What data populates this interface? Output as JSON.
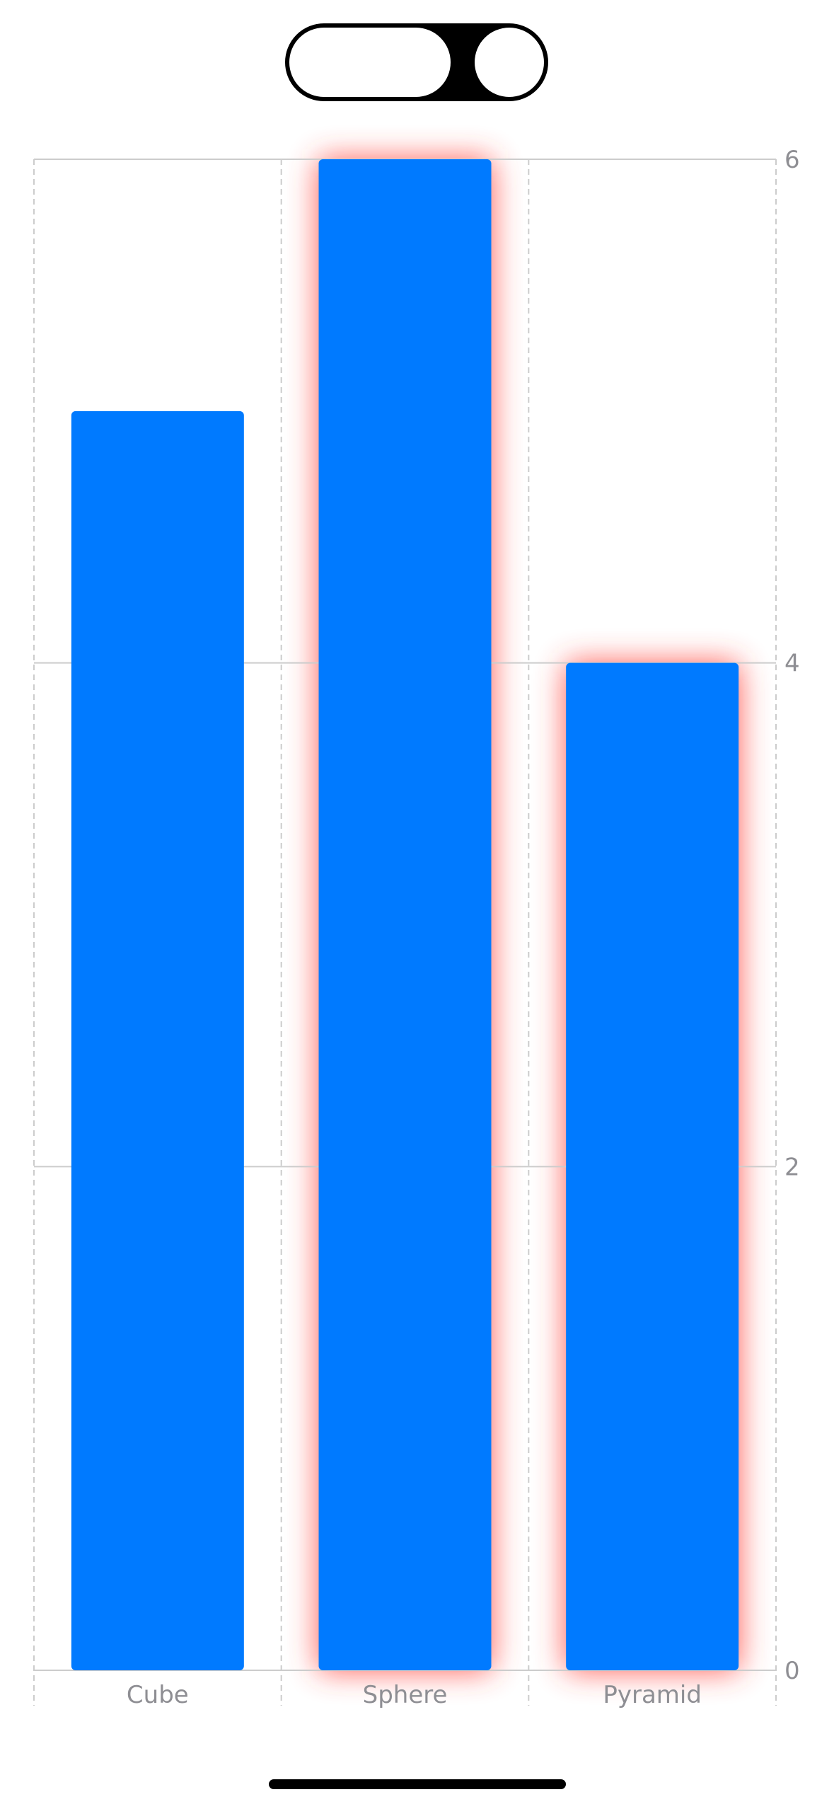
{
  "toggle": {
    "state": "on",
    "colors": {
      "track": "#000000",
      "knob": "#ffffff"
    }
  },
  "chart_data": {
    "type": "bar",
    "categories": [
      "Cube",
      "Sphere",
      "Pyramid"
    ],
    "values": [
      5,
      6,
      4
    ],
    "highlighted": [
      "Sphere",
      "Pyramid"
    ],
    "ylim": [
      0,
      6
    ],
    "yticks": [
      0,
      2,
      4,
      6
    ],
    "y_axis_side": "right",
    "grid": true,
    "colors": {
      "bar": "#007AFF",
      "highlight_glow": "#FF3B30",
      "grid": "#CCCCCC",
      "label": "#8E8E93"
    }
  }
}
